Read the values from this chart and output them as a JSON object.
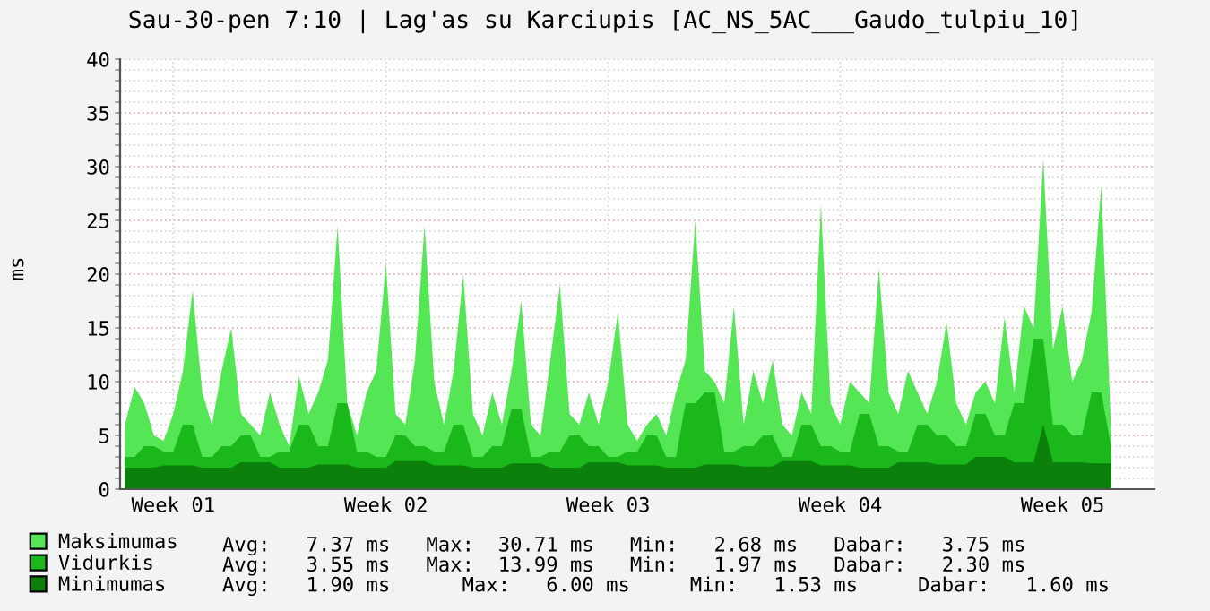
{
  "chart_data": {
    "type": "area",
    "title": "Sau-30-pen 7:10 | Lag'as su Karciupis [AC_NS_5AC___Gaudo_tulpiu_10]",
    "ylabel": "ms",
    "categories": [
      null,
      null,
      null,
      null,
      null,
      "Week 01",
      null,
      null,
      null,
      null,
      null,
      null,
      null,
      null,
      null,
      null,
      null,
      null,
      null,
      null,
      null,
      null,
      null,
      null,
      null,
      null,
      null,
      "Week 02",
      null,
      null,
      null,
      null,
      null,
      null,
      null,
      null,
      null,
      null,
      null,
      null,
      null,
      null,
      null,
      null,
      null,
      null,
      null,
      null,
      null,
      null,
      "Week 03",
      null,
      null,
      null,
      null,
      null,
      null,
      null,
      null,
      null,
      null,
      null,
      null,
      null,
      null,
      null,
      null,
      null,
      null,
      null,
      null,
      null,
      null,
      null,
      "Week 04",
      null,
      null,
      null,
      null,
      null,
      null,
      null,
      null,
      null,
      null,
      null,
      null,
      null,
      null,
      null,
      null,
      null,
      null,
      null,
      null,
      null,
      null,
      "Week 05",
      null,
      null,
      null,
      null,
      null
    ],
    "ylim": [
      0,
      40
    ],
    "yticks": [
      0,
      {
        "value": 1,
        "label": null
      },
      {
        "value": 2,
        "label": null
      },
      {
        "value": 3,
        "label": null
      },
      {
        "value": 4,
        "label": null
      },
      5,
      {
        "value": 6,
        "label": null
      },
      {
        "value": 7,
        "label": null
      },
      {
        "value": 8,
        "label": null
      },
      {
        "value": 9,
        "label": null
      },
      10,
      {
        "value": 11,
        "label": null
      },
      {
        "value": 12,
        "label": null
      },
      {
        "value": 13,
        "label": null
      },
      {
        "value": 14,
        "label": null
      },
      15,
      {
        "value": 16,
        "label": null
      },
      {
        "value": 17,
        "label": null
      },
      {
        "value": 18,
        "label": null
      },
      {
        "value": 19,
        "label": null
      },
      20,
      {
        "value": 21,
        "label": null
      },
      {
        "value": 22,
        "label": null
      },
      {
        "value": 23,
        "label": null
      },
      {
        "value": 24,
        "label": null
      },
      25,
      {
        "value": 26,
        "label": null
      },
      {
        "value": 27,
        "label": null
      },
      {
        "value": 28,
        "label": null
      },
      {
        "value": 29,
        "label": null
      },
      30,
      {
        "value": 31,
        "label": null
      },
      {
        "value": 32,
        "label": null
      },
      {
        "value": 33,
        "label": null
      },
      {
        "value": 34,
        "label": null
      },
      35,
      {
        "value": 36,
        "label": null
      },
      {
        "value": 37,
        "label": null
      },
      {
        "value": 38,
        "label": null
      },
      {
        "value": 39,
        "label": null
      },
      40
    ],
    "grid": true,
    "legend": "bottom left",
    "series": [
      {
        "name": "Maksimumas",
        "color": "#55e655",
        "values": [
          6,
          9.5,
          8,
          5,
          4.5,
          7,
          11,
          18.5,
          9,
          6,
          11,
          15,
          7,
          6,
          5,
          9,
          6,
          4,
          10.5,
          7,
          9,
          12,
          24.5,
          8,
          5,
          9,
          11,
          21,
          7,
          6,
          12,
          24.5,
          10,
          6,
          11,
          20,
          7,
          5,
          9,
          6,
          11,
          17.5,
          6,
          5,
          12,
          19,
          7,
          6,
          9,
          6,
          10,
          16.5,
          6,
          4.5,
          6,
          7,
          5,
          9,
          12,
          25,
          11,
          10,
          8,
          17,
          6,
          11,
          8,
          12,
          6,
          5,
          9,
          7,
          26.5,
          8,
          6,
          10,
          9,
          8,
          20.5,
          9,
          7,
          11,
          9,
          7,
          10,
          15.5,
          8,
          6,
          9,
          10,
          8,
          16,
          9,
          17,
          15,
          30.7,
          13,
          17,
          10,
          12,
          16.5,
          28.3,
          6
        ]
      },
      {
        "name": "Vidurkis",
        "color": "#1ab81a",
        "values": [
          3,
          3,
          4,
          4,
          3.5,
          3.5,
          6,
          6,
          3,
          3,
          4,
          4,
          5,
          5,
          3,
          3,
          3.5,
          3.5,
          6,
          6,
          4,
          4,
          8,
          8,
          3.5,
          3.5,
          3,
          3,
          5,
          5,
          4,
          4,
          3.5,
          3.5,
          6,
          6,
          3,
          3,
          4,
          4,
          7.5,
          7.5,
          3,
          3,
          3.5,
          3.5,
          5,
          5,
          4,
          4,
          3,
          3,
          3.5,
          3.5,
          5,
          5,
          3,
          3,
          8,
          8,
          9,
          9,
          3.5,
          3.5,
          4,
          4,
          5,
          5,
          3,
          3,
          6,
          6,
          4,
          4,
          3.5,
          3.5,
          7,
          7,
          4,
          4,
          3.5,
          3.5,
          6,
          6,
          5,
          5,
          4,
          4,
          7,
          7,
          5,
          5,
          8,
          8,
          14,
          14,
          6,
          6,
          5,
          5,
          9,
          9,
          4
        ]
      },
      {
        "name": "Minimumas",
        "color": "#0b800b",
        "values": [
          2,
          2,
          2,
          2,
          2.2,
          2.2,
          2.2,
          2.2,
          2,
          2,
          2,
          2,
          2.5,
          2.5,
          2.5,
          2.5,
          2,
          2,
          2,
          2,
          2.3,
          2.3,
          2.3,
          2.3,
          2,
          2,
          2,
          2,
          2.6,
          2.6,
          2.6,
          2.6,
          2.2,
          2.2,
          2.2,
          2.2,
          2,
          2,
          2,
          2,
          2.4,
          2.4,
          2.4,
          2.4,
          2,
          2,
          2,
          2,
          2.5,
          2.5,
          2.5,
          2.5,
          2.2,
          2.2,
          2.2,
          2.2,
          2,
          2,
          2,
          2,
          2.3,
          2.3,
          2.3,
          2.3,
          2.1,
          2.1,
          2.1,
          2.1,
          2.6,
          2.6,
          2.6,
          2.6,
          2.2,
          2.2,
          2.2,
          2.2,
          2,
          2,
          2,
          2,
          2.5,
          2.5,
          2.5,
          2.5,
          2.3,
          2.3,
          2.3,
          2.3,
          3,
          3,
          3,
          3,
          2.5,
          2.5,
          2.5,
          6,
          2.5,
          2.5,
          2.5,
          2.5,
          2.4,
          2.4,
          2.4
        ]
      }
    ],
    "annotations": [
      "Avg:   7.37 ms   Max:  30.71 ms   Min:   2.68 ms   Dabar:   3.75 ms",
      "Avg:   3.55 ms   Max:  13.99 ms   Min:   1.97 ms   Dabar:   2.30 ms",
      "Avg:   1.90 ms      Max:   6.00 ms     Min:   1.53 ms     Dabar:   1.60 ms"
    ]
  }
}
